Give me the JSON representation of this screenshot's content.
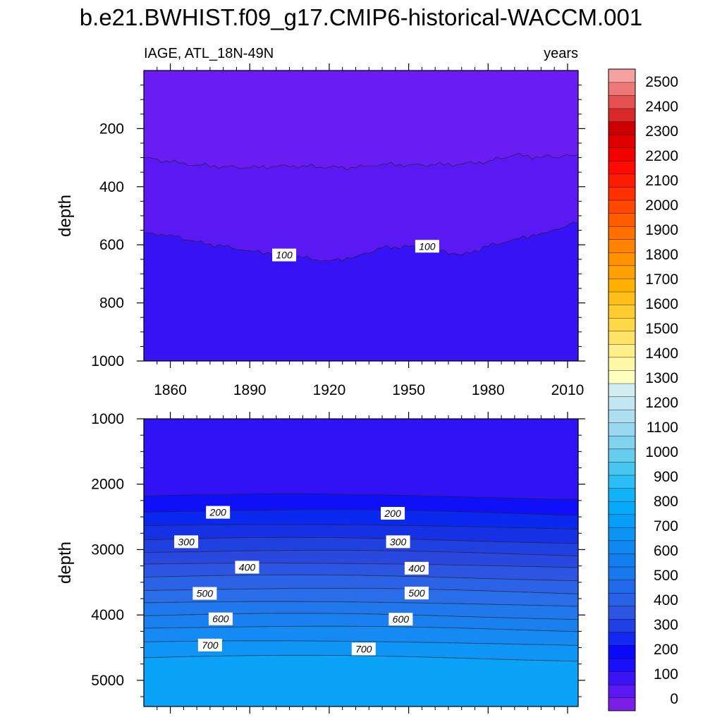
{
  "chart_data": {
    "type": "contour",
    "title": "b.e21.BWHIST.f09_g17.CMIP6-historical-WACCM.001",
    "left_subtitle": "IAGE, ATL_18N-49N",
    "right_subtitle": "years",
    "xlabel": "",
    "x_ticks": [
      1860,
      1890,
      1920,
      1950,
      1980,
      2010
    ],
    "xlim": [
      1850,
      2014
    ],
    "panels": [
      {
        "name": "upper",
        "ylabel": "depth",
        "ylim": [
          0,
          1000
        ],
        "y_ticks": [
          200,
          400,
          600,
          800,
          1000
        ],
        "fill_below_top": "#6a1df2",
        "bands": [
          {
            "level": 50,
            "color": "#5a18f3"
          },
          {
            "level": 100,
            "color": "#3712f5"
          }
        ],
        "contours": [
          {
            "level": 50,
            "depths": [
              [
                1850,
                300
              ],
              [
                1860,
                315
              ],
              [
                1870,
                325
              ],
              [
                1880,
                330
              ],
              [
                1890,
                335
              ],
              [
                1900,
                330
              ],
              [
                1910,
                328
              ],
              [
                1920,
                333
              ],
              [
                1930,
                335
              ],
              [
                1940,
                322
              ],
              [
                1950,
                325
              ],
              [
                1960,
                325
              ],
              [
                1970,
                322
              ],
              [
                1980,
                312
              ],
              [
                1990,
                290
              ],
              [
                2000,
                300
              ],
              [
                2014,
                290
              ]
            ]
          },
          {
            "level": 100,
            "depths": [
              [
                1850,
                560
              ],
              [
                1860,
                565
              ],
              [
                1870,
                590
              ],
              [
                1880,
                605
              ],
              [
                1890,
                620
              ],
              [
                1900,
                630
              ],
              [
                1910,
                645
              ],
              [
                1920,
                655
              ],
              [
                1930,
                640
              ],
              [
                1940,
                610
              ],
              [
                1950,
                605
              ],
              [
                1960,
                615
              ],
              [
                1970,
                635
              ],
              [
                1980,
                605
              ],
              [
                1990,
                580
              ],
              [
                2000,
                560
              ],
              [
                2014,
                525
              ]
            ]
          }
        ],
        "contour_labels": [
          {
            "text": "100",
            "x": 1903,
            "y": 635
          },
          {
            "text": "100",
            "x": 1957,
            "y": 605
          }
        ]
      },
      {
        "name": "lower",
        "ylabel": "depth",
        "ylim": [
          1000,
          5400
        ],
        "y_ticks": [
          1000,
          2000,
          3000,
          4000,
          5000
        ],
        "fill_below_top": "#3112f5",
        "bands": [
          {
            "level": 150,
            "color": "#1010f8"
          },
          {
            "level": 200,
            "color": "#0a28ee"
          },
          {
            "level": 250,
            "color": "#1630e4"
          },
          {
            "level": 300,
            "color": "#2040df"
          },
          {
            "level": 350,
            "color": "#2a48dd"
          },
          {
            "level": 400,
            "color": "#2c55e2"
          },
          {
            "level": 450,
            "color": "#2c62e6"
          },
          {
            "level": 500,
            "color": "#2a6de8"
          },
          {
            "level": 550,
            "color": "#2078ec"
          },
          {
            "level": 600,
            "color": "#1a80ef"
          },
          {
            "level": 650,
            "color": "#148af2"
          },
          {
            "level": 700,
            "color": "#0f95f5"
          },
          {
            "level": 750,
            "color": "#0aa3f7"
          },
          {
            "level": 800,
            "color": "#08b0f9"
          }
        ],
        "contours": [
          {
            "level": 150,
            "mean_depth": 2180
          },
          {
            "level": 200,
            "mean_depth": 2420
          },
          {
            "level": 250,
            "mean_depth": 2640
          },
          {
            "level": 300,
            "mean_depth": 2850
          },
          {
            "level": 350,
            "mean_depth": 3040
          },
          {
            "level": 400,
            "mean_depth": 3230
          },
          {
            "level": 450,
            "mean_depth": 3420
          },
          {
            "level": 500,
            "mean_depth": 3620
          },
          {
            "level": 550,
            "mean_depth": 3820
          },
          {
            "level": 600,
            "mean_depth": 4010
          },
          {
            "level": 650,
            "mean_depth": 4200
          },
          {
            "level": 700,
            "mean_depth": 4420
          },
          {
            "level": 750,
            "mean_depth": 4650
          }
        ],
        "contour_labels": [
          {
            "text": "200",
            "x": 1878,
            "y": 2430
          },
          {
            "text": "200",
            "x": 1944,
            "y": 2445
          },
          {
            "text": "300",
            "x": 1866,
            "y": 2880
          },
          {
            "text": "300",
            "x": 1946,
            "y": 2880
          },
          {
            "text": "400",
            "x": 1889,
            "y": 3270
          },
          {
            "text": "400",
            "x": 1953,
            "y": 3285
          },
          {
            "text": "500",
            "x": 1873,
            "y": 3670
          },
          {
            "text": "500",
            "x": 1953,
            "y": 3665
          },
          {
            "text": "600",
            "x": 1879,
            "y": 4060
          },
          {
            "text": "600",
            "x": 1947,
            "y": 4065
          },
          {
            "text": "700",
            "x": 1875,
            "y": 4460
          },
          {
            "text": "700",
            "x": 1933,
            "y": 4520
          }
        ]
      }
    ],
    "colorbar": {
      "labels": [
        "0",
        "100",
        "200",
        "300",
        "400",
        "500",
        "600",
        "700",
        "800",
        "900",
        "1000",
        "1100",
        "1200",
        "1300",
        "1400",
        "1500",
        "1600",
        "1700",
        "1800",
        "1900",
        "2000",
        "2100",
        "2200",
        "2300",
        "2400",
        "2500"
      ],
      "colors": [
        "#7b1fe6",
        "#5a18f3",
        "#3a14f5",
        "#1a10f8",
        "#0a0af9",
        "#1428f0",
        "#2040e4",
        "#2c55e2",
        "#2a62e6",
        "#206ae9",
        "#1878ec",
        "#147eef",
        "#1088f2",
        "#0c94f4",
        "#089ef7",
        "#06aaf8",
        "#10b4f6",
        "#2bbef4",
        "#48c6f0",
        "#66cdef",
        "#80d2ee",
        "#98d8ef",
        "#aedff0",
        "#c2e6f2",
        "#d2ecf4",
        "#ffffc0",
        "#fff8a8",
        "#ffef88",
        "#ffe266",
        "#ffd84a",
        "#ffcc30",
        "#ffbf1a",
        "#ffb000",
        "#ffa100",
        "#ff9200",
        "#ff8200",
        "#ff7000",
        "#ff5c00",
        "#ff4800",
        "#ff3000",
        "#ff1c00",
        "#ff0a00",
        "#f20000",
        "#e00000",
        "#cc0000",
        "#d82a2a",
        "#e45050",
        "#ee7878",
        "#f6a0a0"
      ]
    }
  }
}
